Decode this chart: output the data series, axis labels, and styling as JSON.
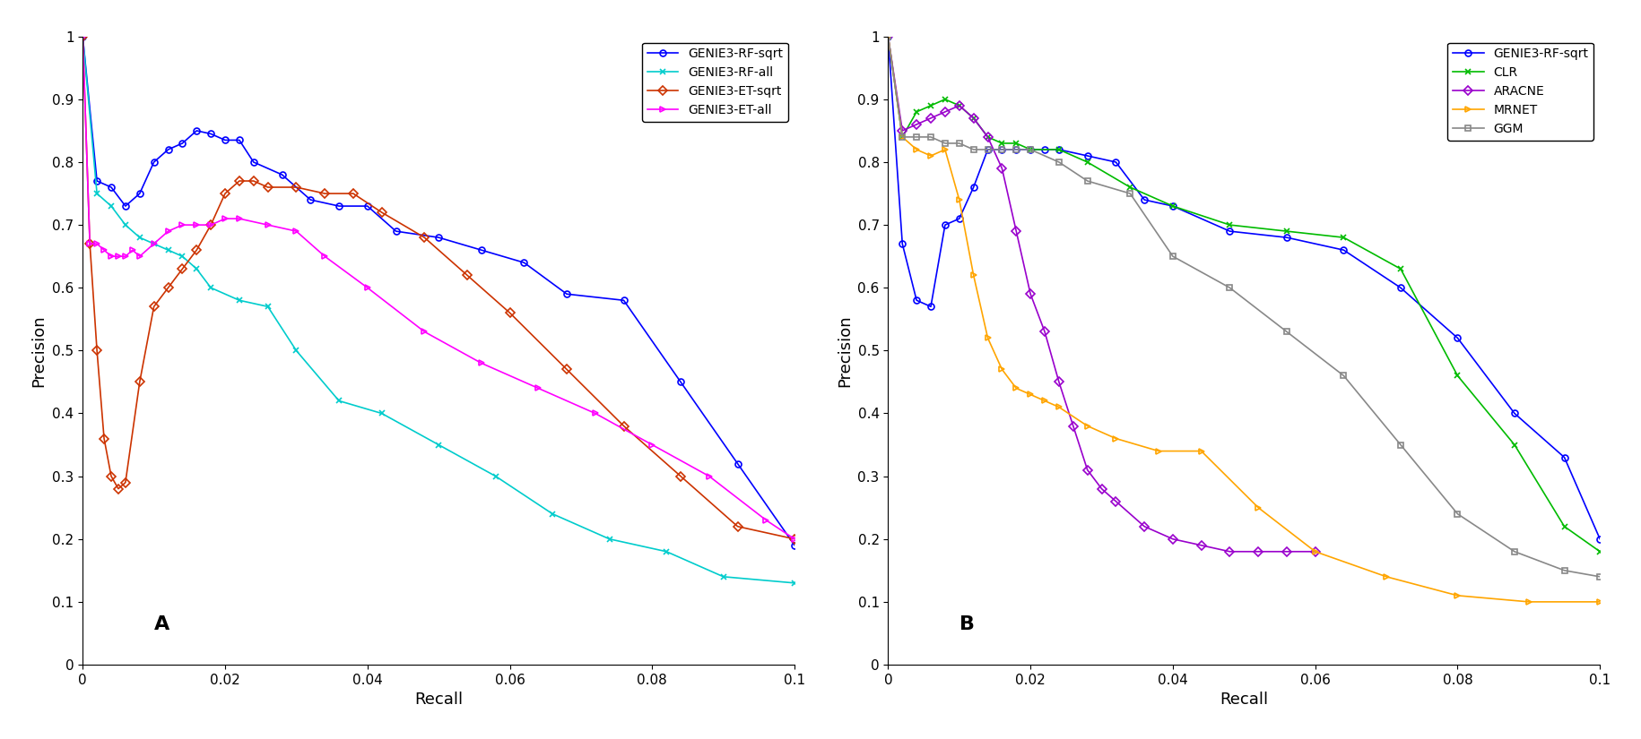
{
  "panel_A": {
    "GENIE3-RF-sqrt": {
      "color": "#0000FF",
      "marker": "o",
      "markersize": 5,
      "recall": [
        0.0,
        0.002,
        0.004,
        0.006,
        0.008,
        0.01,
        0.012,
        0.014,
        0.016,
        0.018,
        0.02,
        0.022,
        0.024,
        0.028,
        0.032,
        0.036,
        0.04,
        0.044,
        0.05,
        0.056,
        0.062,
        0.068,
        0.076,
        0.084,
        0.092,
        0.1
      ],
      "precision": [
        1.0,
        0.77,
        0.76,
        0.73,
        0.75,
        0.8,
        0.82,
        0.83,
        0.85,
        0.845,
        0.835,
        0.835,
        0.8,
        0.78,
        0.74,
        0.73,
        0.73,
        0.69,
        0.68,
        0.66,
        0.64,
        0.59,
        0.58,
        0.45,
        0.32,
        0.19
      ]
    },
    "GENIE3-RF-all": {
      "color": "#00CCCC",
      "marker": "x",
      "markersize": 5,
      "recall": [
        0.0,
        0.002,
        0.004,
        0.006,
        0.008,
        0.01,
        0.012,
        0.014,
        0.016,
        0.018,
        0.022,
        0.026,
        0.03,
        0.036,
        0.042,
        0.05,
        0.058,
        0.066,
        0.074,
        0.082,
        0.09,
        0.1
      ],
      "precision": [
        1.0,
        0.75,
        0.73,
        0.7,
        0.68,
        0.67,
        0.66,
        0.65,
        0.63,
        0.6,
        0.58,
        0.57,
        0.5,
        0.42,
        0.4,
        0.35,
        0.3,
        0.24,
        0.2,
        0.18,
        0.14,
        0.13
      ]
    },
    "GENIE3-ET-sqrt": {
      "color": "#CC3300",
      "marker": "D",
      "markersize": 5,
      "recall": [
        0.0,
        0.001,
        0.002,
        0.003,
        0.004,
        0.005,
        0.006,
        0.008,
        0.01,
        0.012,
        0.014,
        0.016,
        0.018,
        0.02,
        0.022,
        0.024,
        0.026,
        0.03,
        0.034,
        0.038,
        0.042,
        0.048,
        0.054,
        0.06,
        0.068,
        0.076,
        0.084,
        0.092,
        0.1
      ],
      "precision": [
        1.0,
        0.67,
        0.5,
        0.36,
        0.3,
        0.28,
        0.29,
        0.45,
        0.57,
        0.6,
        0.63,
        0.66,
        0.7,
        0.75,
        0.77,
        0.77,
        0.76,
        0.76,
        0.75,
        0.75,
        0.72,
        0.68,
        0.62,
        0.56,
        0.47,
        0.38,
        0.3,
        0.22,
        0.2
      ]
    },
    "GENIE3-ET-all": {
      "color": "#FF00FF",
      "marker": ">",
      "markersize": 5,
      "recall": [
        0.0,
        0.001,
        0.002,
        0.003,
        0.004,
        0.005,
        0.006,
        0.007,
        0.008,
        0.01,
        0.012,
        0.014,
        0.016,
        0.018,
        0.02,
        0.022,
        0.026,
        0.03,
        0.034,
        0.04,
        0.048,
        0.056,
        0.064,
        0.072,
        0.08,
        0.088,
        0.096,
        0.1
      ],
      "precision": [
        1.0,
        0.67,
        0.67,
        0.66,
        0.65,
        0.65,
        0.65,
        0.66,
        0.65,
        0.67,
        0.69,
        0.7,
        0.7,
        0.7,
        0.71,
        0.71,
        0.7,
        0.69,
        0.65,
        0.6,
        0.53,
        0.48,
        0.44,
        0.4,
        0.35,
        0.3,
        0.23,
        0.2
      ]
    }
  },
  "panel_B": {
    "GENIE3-RF-sqrt": {
      "color": "#0000FF",
      "marker": "o",
      "markersize": 5,
      "recall": [
        0.0,
        0.002,
        0.004,
        0.006,
        0.008,
        0.01,
        0.012,
        0.014,
        0.016,
        0.018,
        0.02,
        0.022,
        0.024,
        0.028,
        0.032,
        0.036,
        0.04,
        0.048,
        0.056,
        0.064,
        0.072,
        0.08,
        0.088,
        0.095,
        0.1
      ],
      "precision": [
        1.0,
        0.67,
        0.58,
        0.57,
        0.7,
        0.71,
        0.76,
        0.82,
        0.82,
        0.82,
        0.82,
        0.82,
        0.82,
        0.81,
        0.8,
        0.74,
        0.73,
        0.69,
        0.68,
        0.66,
        0.6,
        0.52,
        0.4,
        0.33,
        0.2
      ]
    },
    "CLR": {
      "color": "#00BB00",
      "marker": "x",
      "markersize": 5,
      "recall": [
        0.0,
        0.002,
        0.004,
        0.006,
        0.008,
        0.01,
        0.012,
        0.014,
        0.016,
        0.018,
        0.02,
        0.024,
        0.028,
        0.034,
        0.04,
        0.048,
        0.056,
        0.064,
        0.072,
        0.08,
        0.088,
        0.095,
        0.1
      ],
      "precision": [
        1.0,
        0.84,
        0.88,
        0.89,
        0.9,
        0.89,
        0.87,
        0.84,
        0.83,
        0.83,
        0.82,
        0.82,
        0.8,
        0.76,
        0.73,
        0.7,
        0.69,
        0.68,
        0.63,
        0.46,
        0.35,
        0.22,
        0.18
      ]
    },
    "ARACNE": {
      "color": "#9900CC",
      "marker": "D",
      "markersize": 5,
      "recall": [
        0.0,
        0.002,
        0.004,
        0.006,
        0.008,
        0.01,
        0.012,
        0.014,
        0.016,
        0.018,
        0.02,
        0.022,
        0.024,
        0.026,
        0.028,
        0.03,
        0.032,
        0.036,
        0.04,
        0.044,
        0.048,
        0.052,
        0.056,
        0.06
      ],
      "precision": [
        1.0,
        0.85,
        0.86,
        0.87,
        0.88,
        0.89,
        0.87,
        0.84,
        0.79,
        0.69,
        0.59,
        0.53,
        0.45,
        0.38,
        0.31,
        0.28,
        0.26,
        0.22,
        0.2,
        0.19,
        0.18,
        0.18,
        0.18,
        0.18
      ]
    },
    "MRNET": {
      "color": "#FFA500",
      "marker": ">",
      "markersize": 5,
      "recall": [
        0.0,
        0.002,
        0.004,
        0.006,
        0.008,
        0.01,
        0.012,
        0.014,
        0.016,
        0.018,
        0.02,
        0.022,
        0.024,
        0.028,
        0.032,
        0.038,
        0.044,
        0.052,
        0.06,
        0.07,
        0.08,
        0.09,
        0.1
      ],
      "precision": [
        1.0,
        0.84,
        0.82,
        0.81,
        0.82,
        0.74,
        0.62,
        0.52,
        0.47,
        0.44,
        0.43,
        0.42,
        0.41,
        0.38,
        0.36,
        0.34,
        0.34,
        0.25,
        0.18,
        0.14,
        0.11,
        0.1,
        0.1
      ]
    },
    "GGM": {
      "color": "#888888",
      "marker": "s",
      "markersize": 5,
      "recall": [
        0.0,
        0.002,
        0.004,
        0.006,
        0.008,
        0.01,
        0.012,
        0.014,
        0.016,
        0.018,
        0.02,
        0.024,
        0.028,
        0.034,
        0.04,
        0.048,
        0.056,
        0.064,
        0.072,
        0.08,
        0.088,
        0.095,
        0.1
      ],
      "precision": [
        1.0,
        0.84,
        0.84,
        0.84,
        0.83,
        0.83,
        0.82,
        0.82,
        0.82,
        0.82,
        0.82,
        0.8,
        0.77,
        0.75,
        0.65,
        0.6,
        0.53,
        0.46,
        0.35,
        0.24,
        0.18,
        0.15,
        0.14
      ]
    }
  },
  "xlabel": "Recall",
  "ylabel": "Precision",
  "xlim": [
    0,
    0.1
  ],
  "ylim": [
    0,
    1.0
  ],
  "yticks": [
    0,
    0.1,
    0.2,
    0.3,
    0.4,
    0.5,
    0.6,
    0.7,
    0.8,
    0.9,
    1.0
  ],
  "xticks": [
    0,
    0.02,
    0.04,
    0.06,
    0.08,
    0.1
  ],
  "label_A": "A",
  "label_B": "B",
  "background_color": "#FFFFFF",
  "legend_A_order": [
    "GENIE3-RF-sqrt",
    "GENIE3-RF-all",
    "GENIE3-ET-sqrt",
    "GENIE3-ET-all"
  ],
  "legend_B_order": [
    "GENIE3-RF-sqrt",
    "CLR",
    "ARACNE",
    "MRNET",
    "GGM"
  ]
}
